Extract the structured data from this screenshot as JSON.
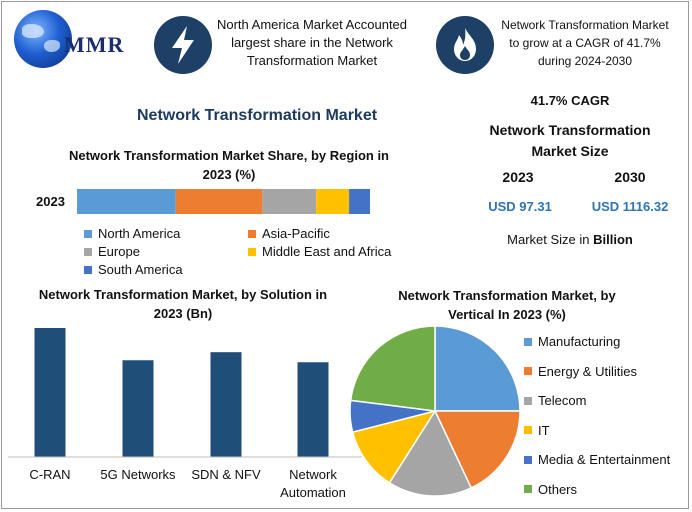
{
  "header": {
    "logo_text": "MMR",
    "logo_icon": "globe-icon",
    "box1_icon": "lightning-bolt-icon",
    "box1_text": "North America Market Accounted largest share in the Network Transformation Market",
    "box2_icon": "flame-icon",
    "box2_text": "Network Transformation Market to grow at a CAGR of 41.7% during 2024-2030"
  },
  "page_title": "Network Transformation Market",
  "stats": {
    "cagr": "41.7% CAGR",
    "size_title": "Network Transformation Market Size",
    "year_a": "2023",
    "year_b": "2030",
    "value_a": "USD 97.31",
    "value_b": "USD 1116.32",
    "unit_prefix": "Market Size in ",
    "unit_bold": "Billion"
  },
  "colors": {
    "north_america": "#5b9bd5",
    "asia_pacific": "#ed7d31",
    "europe": "#a5a5a5",
    "mea": "#ffc000",
    "south_america": "#4472c4",
    "solution_bar": "#1f4e79",
    "others": "#70ad47"
  },
  "chart_data": [
    {
      "type": "bar",
      "orientation": "horizontal-stacked",
      "title": "Network Transformation Market Share, by Region in 2023 (%)",
      "categories": [
        "2023"
      ],
      "series": [
        {
          "name": "North America",
          "values": [
            33
          ]
        },
        {
          "name": "Asia-Pacific",
          "values": [
            29
          ]
        },
        {
          "name": "Europe",
          "values": [
            18
          ]
        },
        {
          "name": "Middle East and Africa",
          "values": [
            11
          ]
        },
        {
          "name": "South America",
          "values": [
            7
          ]
        }
      ],
      "legend": "bottom"
    },
    {
      "type": "bar",
      "title": "Network Transformation Market, by Solution in 2023 (Bn)",
      "categories": [
        "C-RAN",
        "5G Networks",
        "SDN & NFV",
        "Network Automation"
      ],
      "values": [
        32,
        24,
        26,
        23.5
      ],
      "ylim": [
        0,
        32
      ]
    },
    {
      "type": "pie",
      "title": "Network Transformation Market, by Vertical In 2023 (%)",
      "categories": [
        "Manufacturing",
        "Energy & Utilities",
        "Telecom",
        "IT",
        "Media & Entertainment",
        "Others"
      ],
      "values": [
        25,
        18,
        16,
        12,
        6,
        23
      ],
      "legend": "right"
    }
  ]
}
